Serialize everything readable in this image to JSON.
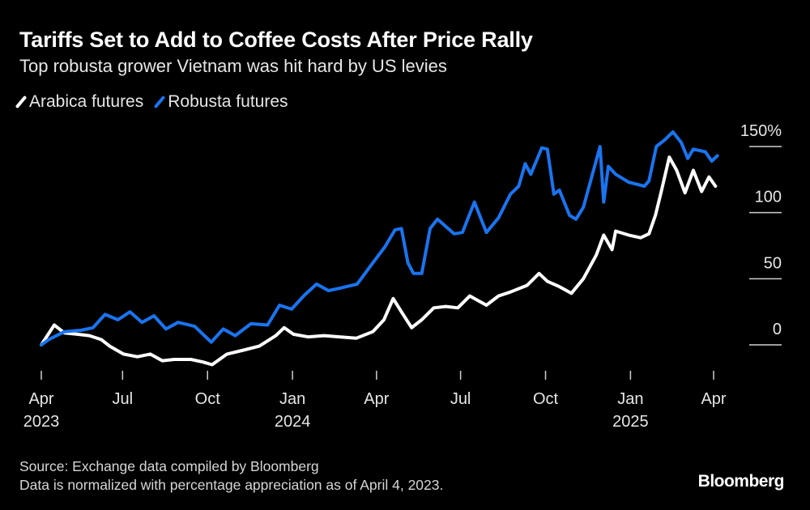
{
  "header": {
    "title": "Tariffs Set to Add to Coffee Costs After Price Rally",
    "subtitle": "Top robusta grower Vietnam was hit hard by US levies"
  },
  "footer": {
    "source": "Source: Exchange data compiled by Bloomberg",
    "note": "Data is normalized with percentage appreciation as of April 4, 2023.",
    "logo": "Bloomberg"
  },
  "chart_data": {
    "type": "line",
    "title": "Tariffs Set to Add to Coffee Costs After Price Rally",
    "subtitle": "Top robusta grower Vietnam was hit hard by US levies",
    "xlabel": "",
    "ylabel": "",
    "ylim": [
      -20,
      150
    ],
    "xlim": [
      "2023-04-04",
      "2025-04-05"
    ],
    "grid": false,
    "legend_position": "top-left",
    "y_ticks": [
      {
        "value": 150,
        "label": "150%"
      },
      {
        "value": 100,
        "label": "100"
      },
      {
        "value": 50,
        "label": "50"
      },
      {
        "value": 0,
        "label": "0"
      }
    ],
    "x_ticks": [
      {
        "date": "2023-04-01",
        "label": "Apr",
        "year": "2023"
      },
      {
        "date": "2023-07-01",
        "label": "Jul",
        "year": ""
      },
      {
        "date": "2023-10-01",
        "label": "Oct",
        "year": ""
      },
      {
        "date": "2024-01-01",
        "label": "Jan",
        "year": "2024"
      },
      {
        "date": "2024-04-01",
        "label": "Apr",
        "year": ""
      },
      {
        "date": "2024-07-01",
        "label": "Jul",
        "year": ""
      },
      {
        "date": "2024-10-01",
        "label": "Oct",
        "year": ""
      },
      {
        "date": "2025-01-01",
        "label": "Jan",
        "year": "2025"
      },
      {
        "date": "2025-04-01",
        "label": "Apr",
        "year": ""
      }
    ],
    "series": [
      {
        "name": "Arabica futures",
        "color": "#ffffff",
        "points": [
          [
            "2023-04-04",
            0
          ],
          [
            "2023-04-18",
            15
          ],
          [
            "2023-04-29",
            9
          ],
          [
            "2023-05-13",
            8
          ],
          [
            "2023-05-26",
            7
          ],
          [
            "2023-06-08",
            4
          ],
          [
            "2023-06-17",
            -1
          ],
          [
            "2023-07-02",
            -7
          ],
          [
            "2023-07-17",
            -9
          ],
          [
            "2023-07-31",
            -7
          ],
          [
            "2023-08-13",
            -12
          ],
          [
            "2023-08-26",
            -11
          ],
          [
            "2023-09-13",
            -11
          ],
          [
            "2023-09-26",
            -13
          ],
          [
            "2023-10-06",
            -15
          ],
          [
            "2023-10-22",
            -7
          ],
          [
            "2023-11-09",
            -4
          ],
          [
            "2023-11-26",
            -1
          ],
          [
            "2023-12-14",
            7
          ],
          [
            "2023-12-23",
            13
          ],
          [
            "2024-01-02",
            8
          ],
          [
            "2024-01-18",
            6
          ],
          [
            "2024-02-04",
            7
          ],
          [
            "2024-02-22",
            6
          ],
          [
            "2024-03-10",
            5
          ],
          [
            "2024-03-28",
            10
          ],
          [
            "2024-04-09",
            19
          ],
          [
            "2024-04-19",
            35
          ],
          [
            "2024-04-28",
            25
          ],
          [
            "2024-05-09",
            13
          ],
          [
            "2024-05-20",
            19
          ],
          [
            "2024-06-02",
            28
          ],
          [
            "2024-06-15",
            29
          ],
          [
            "2024-06-28",
            28
          ],
          [
            "2024-07-11",
            37
          ],
          [
            "2024-07-29",
            30
          ],
          [
            "2024-08-11",
            37
          ],
          [
            "2024-08-24",
            40
          ],
          [
            "2024-09-11",
            45
          ],
          [
            "2024-09-24",
            54
          ],
          [
            "2024-10-03",
            48
          ],
          [
            "2024-10-16",
            44
          ],
          [
            "2024-10-29",
            39
          ],
          [
            "2024-11-11",
            50
          ],
          [
            "2024-11-25",
            68
          ],
          [
            "2024-12-03",
            83
          ],
          [
            "2024-12-12",
            72
          ],
          [
            "2024-12-16",
            86
          ],
          [
            "2024-12-30",
            83
          ],
          [
            "2025-01-12",
            81
          ],
          [
            "2025-01-21",
            84
          ],
          [
            "2025-01-28",
            98
          ],
          [
            "2025-02-03",
            115
          ],
          [
            "2025-02-12",
            142
          ],
          [
            "2025-02-20",
            132
          ],
          [
            "2025-03-01",
            115
          ],
          [
            "2025-03-10",
            132
          ],
          [
            "2025-03-19",
            116
          ],
          [
            "2025-03-27",
            127
          ],
          [
            "2025-04-03",
            120
          ]
        ]
      },
      {
        "name": "Robusta futures",
        "color": "#1a74f0",
        "points": [
          [
            "2023-04-04",
            0
          ],
          [
            "2023-04-12",
            4
          ],
          [
            "2023-04-29",
            10
          ],
          [
            "2023-05-17",
            11
          ],
          [
            "2023-05-30",
            13
          ],
          [
            "2023-06-12",
            23
          ],
          [
            "2023-06-26",
            19
          ],
          [
            "2023-07-09",
            25
          ],
          [
            "2023-07-22",
            17
          ],
          [
            "2023-08-04",
            22
          ],
          [
            "2023-08-17",
            12
          ],
          [
            "2023-08-30",
            17
          ],
          [
            "2023-09-17",
            14
          ],
          [
            "2023-10-05",
            2
          ],
          [
            "2023-10-18",
            12
          ],
          [
            "2023-10-31",
            7
          ],
          [
            "2023-11-17",
            16
          ],
          [
            "2023-12-05",
            15
          ],
          [
            "2023-12-18",
            30
          ],
          [
            "2023-12-31",
            27
          ],
          [
            "2024-01-13",
            37
          ],
          [
            "2024-01-27",
            46
          ],
          [
            "2024-02-09",
            41
          ],
          [
            "2024-02-22",
            43
          ],
          [
            "2024-03-11",
            46
          ],
          [
            "2024-03-28",
            62
          ],
          [
            "2024-04-10",
            74
          ],
          [
            "2024-04-21",
            87
          ],
          [
            "2024-04-28",
            88
          ],
          [
            "2024-05-05",
            62
          ],
          [
            "2024-05-11",
            54
          ],
          [
            "2024-05-20",
            54
          ],
          [
            "2024-05-29",
            88
          ],
          [
            "2024-06-06",
            95
          ],
          [
            "2024-06-24",
            84
          ],
          [
            "2024-07-03",
            85
          ],
          [
            "2024-07-16",
            108
          ],
          [
            "2024-07-29",
            85
          ],
          [
            "2024-08-11",
            96
          ],
          [
            "2024-08-24",
            114
          ],
          [
            "2024-09-02",
            120
          ],
          [
            "2024-09-09",
            137
          ],
          [
            "2024-09-15",
            129
          ],
          [
            "2024-09-27",
            149
          ],
          [
            "2024-10-03",
            148
          ],
          [
            "2024-10-10",
            114
          ],
          [
            "2024-10-16",
            117
          ],
          [
            "2024-10-27",
            98
          ],
          [
            "2024-11-03",
            95
          ],
          [
            "2024-11-11",
            104
          ],
          [
            "2024-11-29",
            150
          ],
          [
            "2024-12-03",
            108
          ],
          [
            "2024-12-08",
            135
          ],
          [
            "2024-12-16",
            129
          ],
          [
            "2024-12-30",
            123
          ],
          [
            "2025-01-16",
            120
          ],
          [
            "2025-01-21",
            124
          ],
          [
            "2025-01-29",
            150
          ],
          [
            "2025-02-07",
            155
          ],
          [
            "2025-02-16",
            161
          ],
          [
            "2025-02-25",
            153
          ],
          [
            "2025-03-04",
            141
          ],
          [
            "2025-03-10",
            148
          ],
          [
            "2025-03-23",
            146
          ],
          [
            "2025-03-30",
            139
          ],
          [
            "2025-04-05",
            143
          ]
        ]
      }
    ]
  }
}
